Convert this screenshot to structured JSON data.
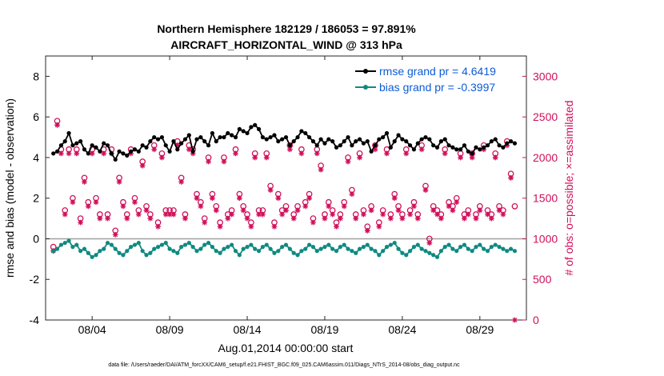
{
  "chart_data": {
    "type": "line",
    "title": "Northern Hemisphere 182129 / 186053 = 97.891%",
    "subtitle": "AIRCRAFT_HORIZONTAL_WIND @ 313 hPa",
    "xlabel": "Aug.01,2014 00:00:00 start",
    "ylabel_left": "rmse and bias (model - observation)",
    "ylabel_right": "# of obs: o=possible; ×=assimilated",
    "footnote": "data file: /Users/raeder/DAI/ATM_forcXX/CAM6_setup/f.e21.FHIST_BGC.f09_025.CAM6assim.011/Diags_NTrS_2014-08/obs_diag_output.nc",
    "x_range_days": [
      0.5,
      31.5
    ],
    "ylim_left": [
      -4,
      9
    ],
    "ylim_right": [
      0,
      3250
    ],
    "x_ticks": [
      {
        "day": 3.5,
        "label": "08/04"
      },
      {
        "day": 8.5,
        "label": "08/09"
      },
      {
        "day": 13.5,
        "label": "08/14"
      },
      {
        "day": 18.5,
        "label": "08/19"
      },
      {
        "day": 23.5,
        "label": "08/24"
      },
      {
        "day": 28.5,
        "label": "08/29"
      }
    ],
    "y_ticks_left": [
      -4,
      -2,
      0,
      2,
      4,
      6,
      8
    ],
    "y_ticks_right": [
      0,
      500,
      1000,
      1500,
      2000,
      2500,
      3000
    ],
    "colors": {
      "rmse": "#000000",
      "bias": "#0f8a80",
      "obs": "#d0105a",
      "zero_line": "#a0a0a0",
      "legend_text": "#0b5bd6"
    },
    "series": [
      {
        "name": "rmse grand pr = 4.6419",
        "axis": "left",
        "marker": "filled-circle",
        "color": "#000000",
        "rmse_values": [
          4.2,
          4.3,
          4.6,
          4.8,
          5.2,
          4.6,
          4.7,
          4.8,
          4.4,
          4.2,
          4.6,
          4.5,
          4.3,
          4.7,
          4.6,
          4.2,
          3.9,
          4.3,
          4.2,
          4.1,
          4.3,
          4.4,
          4.3,
          4.6,
          4.5,
          4.8,
          5.0,
          4.9,
          5.0,
          4.6,
          4.3,
          4.8,
          4.4,
          4.7,
          4.9,
          5.1,
          4.3,
          4.9,
          5.0,
          4.8,
          4.6,
          5.2,
          4.8,
          5.0,
          5.0,
          5.2,
          5.1,
          5.0,
          5.4,
          5.3,
          5.2,
          5.5,
          5.6,
          5.4,
          5.0,
          4.9,
          5.0,
          5.1,
          4.8,
          4.9,
          5.0,
          4.6,
          4.8,
          5.0,
          5.3,
          5.2,
          5.0,
          4.8,
          4.6,
          4.9,
          4.7,
          4.9,
          4.8,
          4.5,
          4.6,
          4.8,
          5.0,
          4.6,
          4.8,
          4.9,
          4.7,
          4.8,
          4.3,
          4.6,
          4.9,
          5.0,
          5.2,
          4.5,
          4.8,
          5.1,
          4.9,
          4.8,
          4.6,
          4.4,
          4.7,
          4.9,
          5.0,
          4.9,
          4.6,
          4.5,
          4.8,
          4.9,
          4.6,
          4.5,
          4.4,
          4.4,
          4.6,
          4.3,
          4.2,
          4.5,
          4.4,
          4.5,
          4.6,
          4.8,
          4.9,
          4.6,
          4.5,
          4.7,
          4.8,
          4.7
        ]
      },
      {
        "name": "bias grand pr = -0.3997",
        "axis": "left",
        "marker": "filled-circle",
        "color": "#0f8a80",
        "bias_values": [
          -0.6,
          -0.5,
          -0.3,
          -0.2,
          -0.1,
          -0.4,
          -0.3,
          -0.6,
          -0.5,
          -0.7,
          -0.9,
          -0.8,
          -0.6,
          -0.5,
          -0.2,
          -0.3,
          -0.5,
          -0.7,
          -0.8,
          -0.6,
          -0.4,
          -0.3,
          -0.2,
          -0.6,
          -0.8,
          -0.7,
          -0.5,
          -0.4,
          -0.3,
          -0.2,
          -0.5,
          -0.6,
          -0.7,
          -0.4,
          -0.3,
          -0.2,
          -0.4,
          -0.6,
          -0.5,
          -0.3,
          -0.2,
          -0.4,
          -0.6,
          -0.7,
          -0.5,
          -0.4,
          -0.3,
          -0.6,
          -0.8,
          -0.5,
          -0.4,
          -0.3,
          -0.5,
          -0.6,
          -0.4,
          -0.3,
          -0.5,
          -0.7,
          -0.6,
          -0.4,
          -0.3,
          -0.5,
          -0.7,
          -0.8,
          -0.6,
          -0.5,
          -0.3,
          -0.4,
          -0.6,
          -0.5,
          -0.4,
          -0.3,
          -0.5,
          -0.6,
          -0.4,
          -0.3,
          -0.5,
          -0.6,
          -0.7,
          -0.5,
          -0.4,
          -0.3,
          -0.5,
          -0.6,
          -0.8,
          -0.6,
          -0.4,
          -0.3,
          -0.2,
          -0.5,
          -0.7,
          -0.8,
          -0.6,
          -0.4,
          -0.3,
          -0.5,
          -0.6,
          -0.7,
          -0.8,
          -0.9,
          -0.6,
          -0.4,
          -0.3,
          -0.5,
          -0.6,
          -0.4,
          -0.3,
          -0.5,
          -0.6,
          -0.4,
          -0.3,
          -0.5,
          -0.6,
          -0.4,
          -0.3,
          -0.4,
          -0.5,
          -0.6,
          -0.5,
          -0.6
        ]
      },
      {
        "name": "possible observations",
        "axis": "right",
        "marker": "open-circle",
        "color": "#d0105a",
        "obs_possible": [
          900,
          2450,
          2100,
          1350,
          2100,
          1500,
          2100,
          1250,
          1750,
          1450,
          2100,
          1500,
          1300,
          2100,
          1300,
          2100,
          1100,
          1750,
          1450,
          1300,
          2100,
          1500,
          1350,
          1950,
          1400,
          1300,
          2150,
          1200,
          2050,
          1350,
          1350,
          1350,
          2200,
          1750,
          1300,
          2150,
          2100,
          1550,
          1450,
          1250,
          2000,
          1550,
          1400,
          1200,
          2000,
          1300,
          1350,
          2100,
          1550,
          1400,
          1300,
          1200,
          2050,
          1350,
          1350,
          2050,
          1650,
          1200,
          1550,
          1350,
          1400,
          2150,
          1300,
          1400,
          2100,
          1450,
          1550,
          1250,
          2100,
          1900,
          1300,
          1450,
          1350,
          1200,
          1300,
          1450,
          2000,
          1600,
          1300,
          2050,
          1350,
          1150,
          1400,
          2150,
          1200,
          1350,
          2100,
          1300,
          1550,
          1400,
          1300,
          2100,
          1350,
          1450,
          1300,
          2150,
          1650,
          1000,
          1400,
          1350,
          1300,
          2100,
          1450,
          1400,
          1500,
          2050,
          1300,
          1350,
          2050,
          1300,
          1400,
          2150,
          1350,
          1300,
          2050,
          1400,
          1350,
          2200,
          1800,
          1400
        ]
      },
      {
        "name": "assimilated observations",
        "axis": "right",
        "marker": "asterisk",
        "color": "#d0105a",
        "obs_assimilated": [
          850,
          2400,
          2050,
          1300,
          2050,
          1450,
          2050,
          1200,
          1700,
          1400,
          2050,
          1450,
          1250,
          2050,
          1250,
          2050,
          1050,
          1700,
          1400,
          1250,
          2050,
          1450,
          1300,
          1900,
          1350,
          1250,
          2100,
          1150,
          2000,
          1300,
          1300,
          1300,
          2150,
          1700,
          1250,
          2100,
          2050,
          1500,
          1400,
          1200,
          1950,
          1500,
          1350,
          1150,
          1950,
          1250,
          1300,
          2050,
          1500,
          1350,
          1250,
          1150,
          2000,
          1300,
          1300,
          2000,
          1600,
          1150,
          1500,
          1300,
          1350,
          2100,
          1250,
          1350,
          2050,
          1400,
          1500,
          1200,
          2050,
          1850,
          1250,
          1400,
          1300,
          1150,
          1250,
          1400,
          1950,
          1550,
          1250,
          2000,
          1300,
          1100,
          1350,
          2100,
          1150,
          1300,
          2050,
          1250,
          1500,
          1350,
          1250,
          2050,
          1300,
          1400,
          1250,
          2100,
          1600,
          950,
          1350,
          1300,
          1250,
          2050,
          1400,
          1350,
          1450,
          2000,
          1250,
          1300,
          2000,
          1250,
          1350,
          2100,
          1300,
          1250,
          2000,
          1350,
          1300,
          2150,
          1750,
          0
        ]
      }
    ],
    "legend": [
      {
        "label": "rmse grand pr = 4.6419",
        "color": "#000000"
      },
      {
        "label": "bias grand pr = -0.3997",
        "color": "#0f8a80"
      }
    ]
  }
}
